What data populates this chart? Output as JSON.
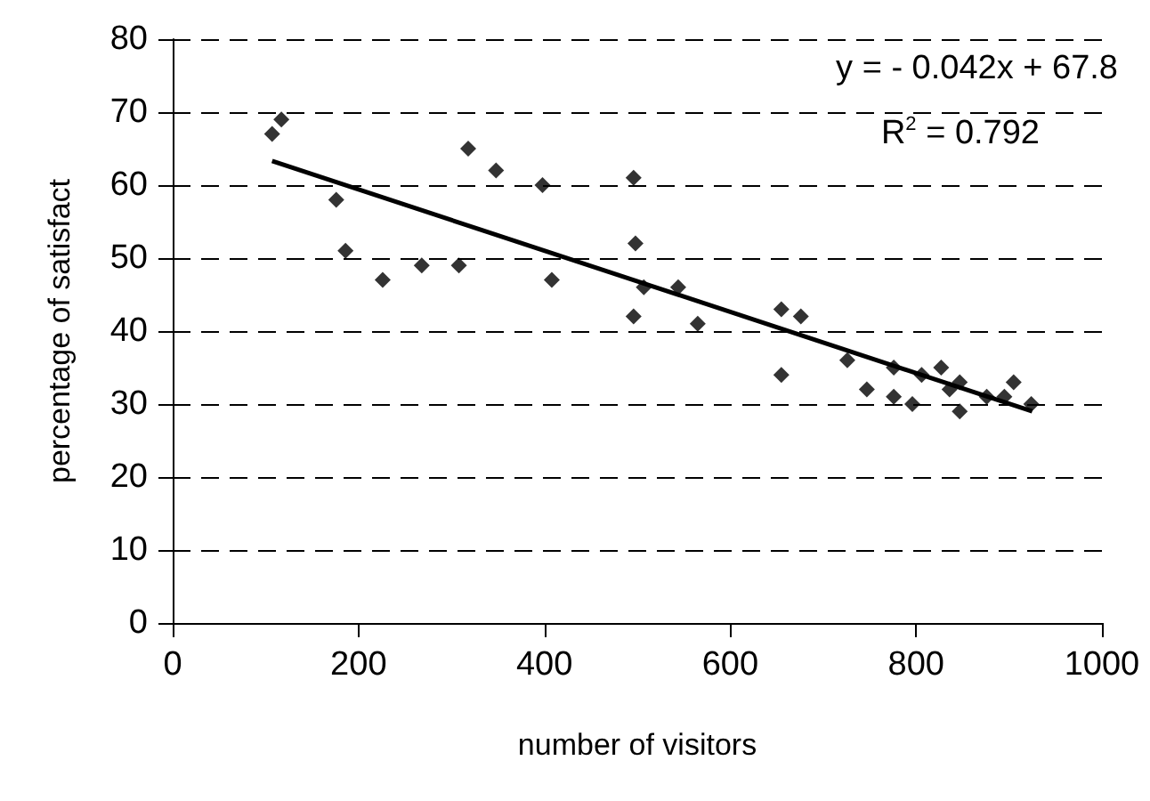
{
  "chart_data": {
    "type": "scatter",
    "xlabel": "number of visitors",
    "ylabel": "percentage of satisfact",
    "annotations": [
      "y =  - 0.042x +  67.8",
      "R$^{2}$ =  0.792"
    ],
    "series": [
      {
        "color": "#000000",
        "marker": "diamond",
        "x": [
          107,
          117,
          176,
          186,
          226,
          268,
          308,
          318,
          348,
          398,
          408,
          496,
          496,
          498,
          507,
          544,
          565,
          655,
          655,
          676,
          726,
          747,
          776,
          776,
          796,
          806,
          827,
          836,
          847,
          847,
          876,
          895,
          905,
          924
        ],
        "values": [
          67,
          69,
          58,
          51,
          47,
          49,
          49,
          65,
          62,
          60,
          47,
          61,
          42,
          52,
          46,
          46,
          41,
          43,
          34,
          42,
          36,
          32,
          35,
          31,
          30,
          34,
          35,
          32,
          33,
          29,
          31,
          31,
          33,
          30
        ]
      },
      {
        "type": "line",
        "color": "#000000",
        "marker": "none",
        "x": [
          107,
          925
        ],
        "values": [
          63.3,
          29
        ]
      }
    ],
    "xlim": [
      0,
      1000
    ],
    "xticks": [
      0,
      200,
      400,
      600,
      800,
      1000
    ],
    "ylim": [
      0,
      80
    ],
    "yticks": [
      0,
      10,
      20,
      30,
      40,
      50,
      60,
      70,
      80
    ],
    "grid": "y"
  }
}
